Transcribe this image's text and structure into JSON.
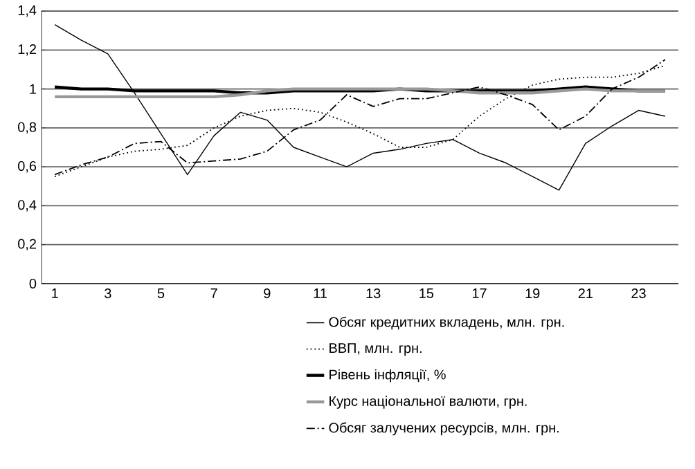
{
  "chart_data": {
    "type": "line",
    "categories": [
      "1",
      null,
      "3",
      null,
      "5",
      null,
      "7",
      null,
      "9",
      null,
      "11",
      null,
      "13",
      null,
      "15",
      null,
      "17",
      null,
      "19",
      null,
      "21",
      null,
      "23",
      null
    ],
    "ylim": [
      0,
      1.4
    ],
    "yticks": [
      0,
      {
        "value": 0.2,
        "label": "0,2"
      },
      {
        "value": 0.4,
        "label": "0,4"
      },
      {
        "value": 0.6,
        "label": "0,6"
      },
      {
        "value": 0.8,
        "label": "0,8"
      },
      1,
      {
        "value": 1.2,
        "label": "1,2"
      },
      {
        "value": 1.4,
        "label": "1,4"
      }
    ],
    "grid": "y",
    "legend": "bottom",
    "marker": "none",
    "series": [
      {
        "name": "Обсяг кредитних вкладень, млн. грн.",
        "color": "#000000",
        "line_style": "solid",
        "values": [
          1.33,
          1.25,
          1.18,
          0.98,
          0.77,
          0.56,
          0.76,
          0.88,
          0.84,
          0.7,
          0.65,
          0.6,
          0.67,
          0.69,
          0.72,
          0.74,
          0.67,
          0.62,
          0.55,
          0.48,
          0.72,
          0.81,
          0.89,
          0.86
        ]
      },
      {
        "name": "ВВП, млн. грн.",
        "color": "#000000",
        "line_style": "dotted",
        "values": [
          0.55,
          0.6,
          0.65,
          0.68,
          0.69,
          0.71,
          0.8,
          0.86,
          0.89,
          0.9,
          0.88,
          0.83,
          0.77,
          0.7,
          0.7,
          0.74,
          0.86,
          0.95,
          1.02,
          1.05,
          1.06,
          1.06,
          1.08,
          1.12
        ]
      },
      {
        "name": "Рівень інфляції, %",
        "color": "#000000",
        "line_style": "solid",
        "values": [
          1.01,
          1.0,
          1.0,
          0.99,
          0.99,
          0.99,
          0.99,
          0.98,
          0.98,
          0.99,
          0.99,
          0.99,
          0.99,
          1.0,
          0.99,
          0.99,
          0.99,
          0.99,
          0.99,
          1.0,
          1.01,
          1.0,
          0.99,
          0.99
        ]
      },
      {
        "name": "Курс національної валюти, грн.",
        "color": "#999999",
        "line_style": "solid",
        "values": [
          0.96,
          0.96,
          0.96,
          0.96,
          0.96,
          0.96,
          0.96,
          0.97,
          0.99,
          1.0,
          1.0,
          1.0,
          1.0,
          1.0,
          1.0,
          0.99,
          0.98,
          0.98,
          0.98,
          0.99,
          1.0,
          0.99,
          0.99,
          0.99
        ]
      },
      {
        "name": "Обсяг залучених ресурсів, млн. грн.",
        "color": "#000000",
        "line_style": "dashdot",
        "values": [
          0.56,
          0.61,
          0.65,
          0.72,
          0.73,
          0.62,
          0.63,
          0.64,
          0.68,
          0.79,
          0.84,
          0.97,
          0.91,
          0.95,
          0.95,
          0.98,
          1.01,
          0.97,
          0.92,
          0.79,
          0.86,
          1.0,
          1.06,
          1.15
        ]
      }
    ]
  }
}
